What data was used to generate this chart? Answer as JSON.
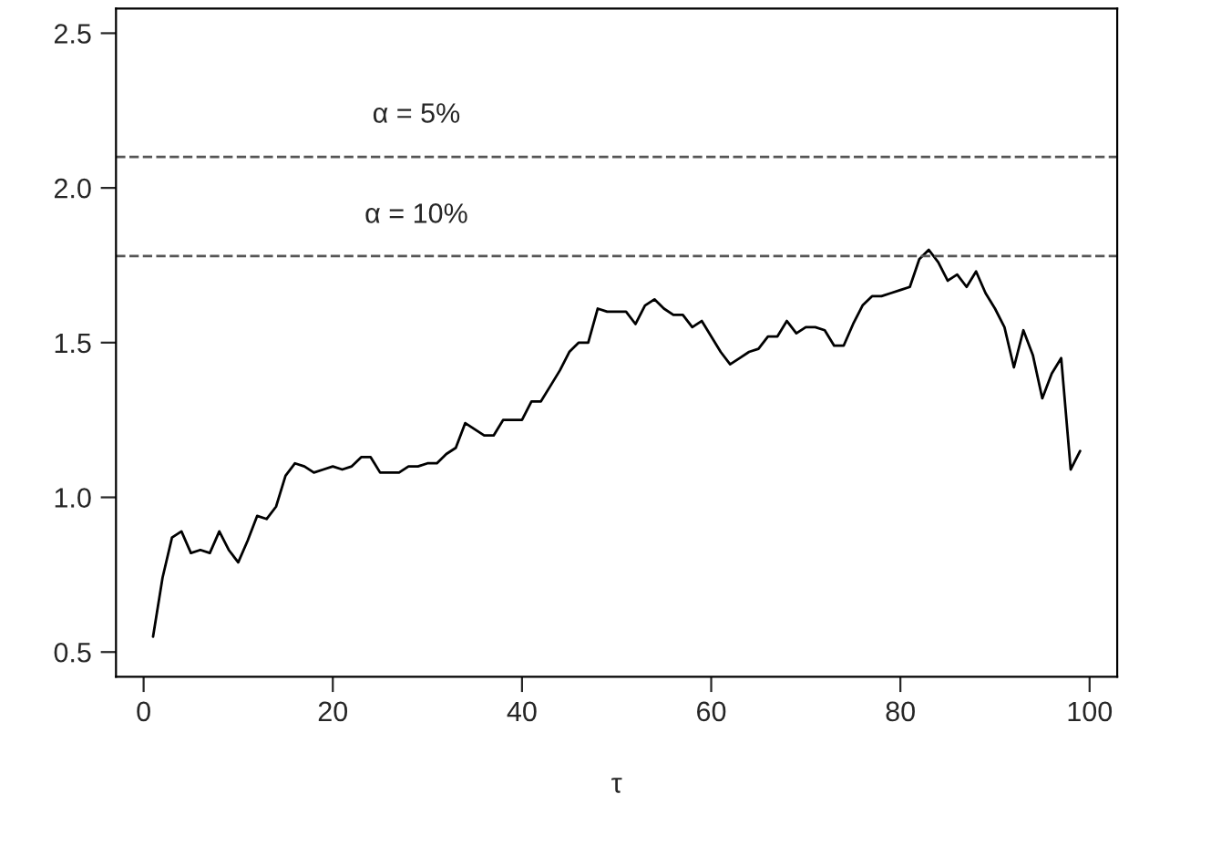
{
  "chart_data": {
    "type": "line",
    "xlabel": "τ",
    "x": [
      1,
      2,
      3,
      4,
      5,
      6,
      7,
      8,
      9,
      10,
      11,
      12,
      13,
      14,
      15,
      16,
      17,
      18,
      19,
      20,
      21,
      22,
      23,
      24,
      25,
      26,
      27,
      28,
      29,
      30,
      31,
      32,
      33,
      34,
      35,
      36,
      37,
      38,
      39,
      40,
      41,
      42,
      43,
      44,
      45,
      46,
      47,
      48,
      49,
      50,
      51,
      52,
      53,
      54,
      55,
      56,
      57,
      58,
      59,
      60,
      61,
      62,
      63,
      64,
      65,
      66,
      67,
      68,
      69,
      70,
      71,
      72,
      73,
      74,
      75,
      76,
      77,
      78,
      79,
      80,
      81,
      82,
      83,
      84,
      85,
      86,
      87,
      88,
      89,
      90,
      91,
      92,
      93,
      94,
      95,
      96,
      97,
      98,
      99
    ],
    "series": [
      {
        "color": "#000000",
        "values": [
          0.55,
          0.74,
          0.87,
          0.89,
          0.82,
          0.83,
          0.82,
          0.89,
          0.83,
          0.79,
          0.86,
          0.94,
          0.93,
          0.97,
          1.07,
          1.11,
          1.1,
          1.08,
          1.09,
          1.1,
          1.09,
          1.1,
          1.13,
          1.13,
          1.08,
          1.08,
          1.08,
          1.1,
          1.1,
          1.11,
          1.11,
          1.14,
          1.16,
          1.24,
          1.22,
          1.2,
          1.2,
          1.25,
          1.25,
          1.25,
          1.31,
          1.31,
          1.36,
          1.41,
          1.47,
          1.5,
          1.5,
          1.61,
          1.6,
          1.6,
          1.6,
          1.56,
          1.62,
          1.64,
          1.61,
          1.59,
          1.59,
          1.55,
          1.57,
          1.52,
          1.47,
          1.43,
          1.45,
          1.47,
          1.48,
          1.52,
          1.52,
          1.57,
          1.53,
          1.55,
          1.55,
          1.54,
          1.49,
          1.49,
          1.56,
          1.62,
          1.65,
          1.65,
          1.66,
          1.67,
          1.68,
          1.77,
          1.8,
          1.76,
          1.7,
          1.72,
          1.68,
          1.73,
          1.66,
          1.61,
          1.55,
          1.42,
          1.54,
          1.46,
          1.32,
          1.4,
          1.45,
          1.09,
          1.15
        ]
      }
    ],
    "xlim": [
      -2.92,
      102.92
    ],
    "xticks": [
      0,
      20,
      40,
      60,
      80,
      100
    ],
    "ylim": [
      0.42,
      2.58
    ],
    "yticks": [
      {
        "value": 0.5,
        "label": "0.5"
      },
      {
        "value": 1.0,
        "label": "1.0"
      },
      {
        "value": 1.5,
        "label": "1.5"
      },
      {
        "value": 2.0,
        "label": "2.0"
      },
      {
        "value": 2.5,
        "label": "2.5"
      }
    ],
    "ref_lines": [
      {
        "axis": "y",
        "value": 2.1,
        "color": "#555555",
        "line_style": "dashed"
      },
      {
        "axis": "y",
        "value": 1.78,
        "color": "#555555",
        "line_style": "dashed"
      }
    ],
    "annotations": [
      "α = 5%",
      "α = 10%"
    ],
    "grid": false,
    "legend": false,
    "marker": "none",
    "line_style": "solid"
  }
}
